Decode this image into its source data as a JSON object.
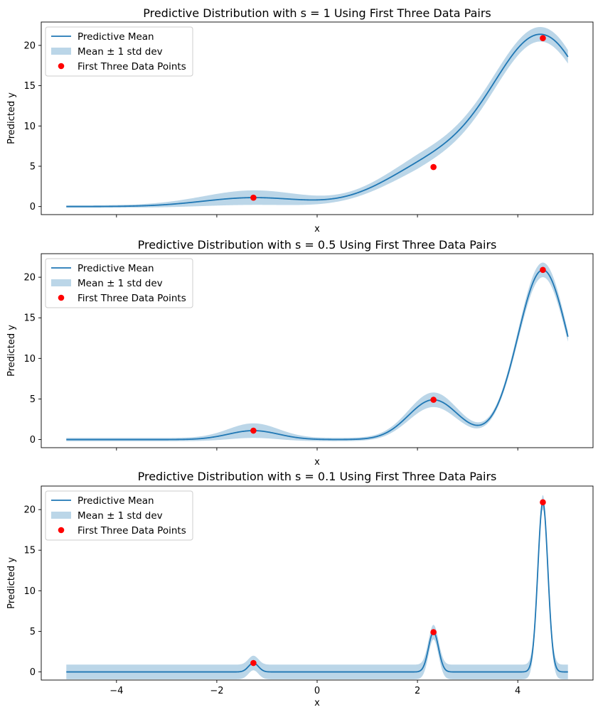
{
  "chart_data": [
    {
      "type": "line",
      "title": "Predictive Distribution with s = 1 Using First Three Data Pairs",
      "xlabel": "x",
      "ylabel": "Predicted y",
      "xlim": [
        -5.5,
        5.5
      ],
      "ylim": [
        -1.0,
        22.9
      ],
      "xticks": [
        -4,
        -2,
        0,
        2,
        4
      ],
      "show_xtick_labels": false,
      "yticks": [
        0,
        5,
        10,
        15,
        20
      ],
      "s": 1,
      "std_band": [
        0.15,
        0.9
      ],
      "grid": false,
      "legend_position": "upper left",
      "legend": [
        "Predictive Mean",
        "Mean ± 1 std dev",
        "First Three Data Points"
      ],
      "points": [
        {
          "x": -1.27,
          "y": 1.1
        },
        {
          "x": 2.32,
          "y": 4.9
        },
        {
          "x": 4.5,
          "y": 20.9
        }
      ]
    },
    {
      "type": "line",
      "title": "Predictive Distribution with s = 0.5 Using First Three Data Pairs",
      "xlabel": "x",
      "ylabel": "Predicted y",
      "xlim": [
        -5.5,
        5.5
      ],
      "ylim": [
        -1.0,
        22.9
      ],
      "xticks": [
        -4,
        -2,
        0,
        2,
        4
      ],
      "show_xtick_labels": false,
      "yticks": [
        0,
        5,
        10,
        15,
        20
      ],
      "s": 0.5,
      "std_band": [
        0.2,
        0.9
      ],
      "grid": false,
      "legend_position": "upper left",
      "legend": [
        "Predictive Mean",
        "Mean ± 1 std dev",
        "First Three Data Points"
      ],
      "points": [
        {
          "x": -1.27,
          "y": 1.1
        },
        {
          "x": 2.32,
          "y": 4.9
        },
        {
          "x": 4.5,
          "y": 20.9
        }
      ]
    },
    {
      "type": "line",
      "title": "Predictive Distribution with s = 0.1 Using First Three Data Pairs",
      "xlabel": "x",
      "ylabel": "Predicted y",
      "xlim": [
        -5.5,
        5.5
      ],
      "ylim": [
        -1.0,
        22.9
      ],
      "xticks": [
        -4,
        -2,
        0,
        2,
        4
      ],
      "show_xtick_labels": true,
      "yticks": [
        0,
        5,
        10,
        15,
        20
      ],
      "s": 0.1,
      "std_band": [
        0.9,
        0.9
      ],
      "grid": false,
      "legend_position": "upper left",
      "legend": [
        "Predictive Mean",
        "Mean ± 1 std dev",
        "First Three Data Points"
      ],
      "points": [
        {
          "x": -1.27,
          "y": 1.1
        },
        {
          "x": 2.32,
          "y": 4.9
        },
        {
          "x": 4.5,
          "y": 20.9
        }
      ]
    }
  ],
  "colors": {
    "mean_line": "#1f77b4",
    "band": "#1f77b4",
    "points": "#ff0000",
    "axes": "#000000",
    "background": "#ffffff",
    "legend_border": "#cccccc"
  }
}
